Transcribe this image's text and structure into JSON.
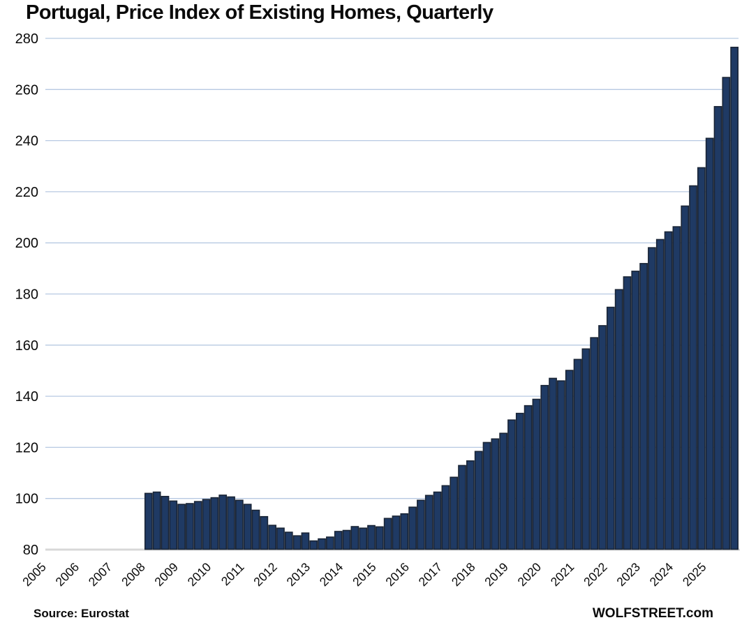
{
  "page": {
    "title": "Portugal, Price Index of Existing Homes, Quarterly",
    "source_label": "Source: Eurostat",
    "brand_label": "WOLFSTREET.com"
  },
  "chart_data": {
    "type": "bar",
    "title": "Portugal, Price Index of Existing Homes, Quarterly",
    "xlabel": "",
    "ylabel": "",
    "legend": "none",
    "grid": "horizontal",
    "y_axis": {
      "min": 80,
      "max": 280,
      "tick_step": 20,
      "ticks": [
        80,
        100,
        120,
        140,
        160,
        180,
        200,
        220,
        240,
        260,
        280
      ]
    },
    "x_axis": {
      "tick_years": [
        2005,
        2006,
        2007,
        2008,
        2009,
        2010,
        2011,
        2012,
        2013,
        2014,
        2015,
        2016,
        2017,
        2018,
        2019,
        2020,
        2021,
        2022,
        2023,
        2024,
        2025
      ],
      "first_year_shown": 2005,
      "last_year_shown": 2025,
      "note": "axis starts at 2005 but data bars begin in 2008"
    },
    "series": [
      {
        "name": "Price Index of Existing Homes",
        "frequency": "quarterly",
        "first_bar": "2008Q1",
        "quarters": [
          "2008Q1",
          "2008Q2",
          "2008Q3",
          "2008Q4",
          "2009Q1",
          "2009Q2",
          "2009Q3",
          "2009Q4",
          "2010Q1",
          "2010Q2",
          "2010Q3",
          "2010Q4",
          "2011Q1",
          "2011Q2",
          "2011Q3",
          "2011Q4",
          "2012Q1",
          "2012Q2",
          "2012Q3",
          "2012Q4",
          "2013Q1",
          "2013Q2",
          "2013Q3",
          "2013Q4",
          "2014Q1",
          "2014Q2",
          "2014Q3",
          "2014Q4",
          "2015Q1",
          "2015Q2",
          "2015Q3",
          "2015Q4",
          "2016Q1",
          "2016Q2",
          "2016Q3",
          "2016Q4",
          "2017Q1",
          "2017Q2",
          "2017Q3",
          "2017Q4",
          "2018Q1",
          "2018Q2",
          "2018Q3",
          "2018Q4",
          "2019Q1",
          "2019Q2",
          "2019Q3",
          "2019Q4",
          "2020Q1",
          "2020Q2",
          "2020Q3",
          "2020Q4",
          "2021Q1",
          "2021Q2",
          "2021Q3",
          "2021Q4",
          "2022Q1",
          "2022Q2",
          "2022Q3",
          "2022Q4",
          "2023Q1",
          "2023Q2",
          "2023Q3",
          "2023Q4",
          "2024Q1",
          "2024Q2",
          "2024Q3",
          "2024Q4",
          "2025Q1",
          "2025Q2",
          "2025Q3",
          "2025Q4"
        ],
        "values": [
          102.0,
          102.5,
          100.8,
          99.0,
          97.7,
          98.0,
          98.8,
          99.6,
          100.3,
          101.3,
          100.6,
          99.3,
          97.7,
          95.4,
          92.9,
          89.5,
          88.4,
          86.8,
          85.4,
          86.5,
          83.4,
          84.2,
          84.9,
          87.1,
          87.5,
          89.0,
          88.4,
          89.4,
          88.9,
          92.2,
          93.1,
          94.0,
          96.6,
          99.3,
          101.2,
          102.5,
          105.0,
          108.3,
          112.9,
          114.7,
          118.4,
          121.9,
          123.3,
          125.5,
          130.7,
          133.3,
          136.3,
          138.8,
          144.2,
          147.0,
          146.0,
          150.1,
          154.4,
          158.5,
          162.9,
          167.6,
          174.8,
          181.7,
          186.7,
          188.9,
          191.9,
          198.1,
          201.3,
          204.3,
          206.3,
          214.4,
          222.3,
          229.4,
          240.9,
          253.3,
          264.7,
          276.5
        ]
      }
    ],
    "colors": {
      "bar_fill": "#1f3a64",
      "bar_stroke": "#1a2536",
      "gridline": "#b7c9e2",
      "baseline": "#d8d8d8",
      "text": "#0a0a0a"
    }
  }
}
